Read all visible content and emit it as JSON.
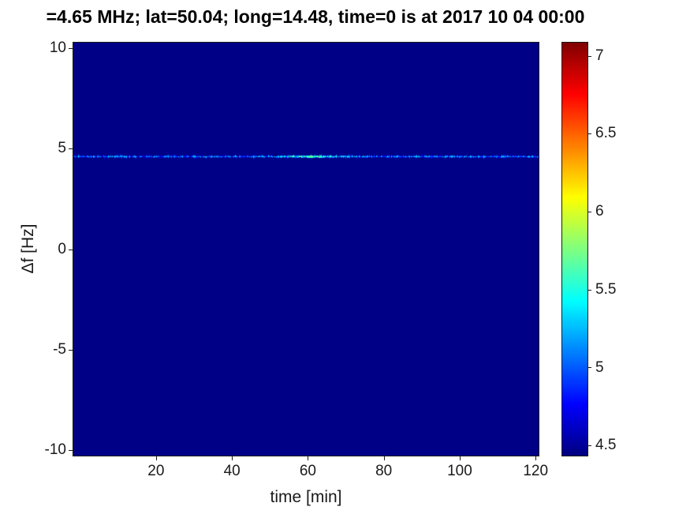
{
  "chart_data": {
    "type": "heatmap",
    "title": "=4.65 MHz;  lat=50.04; long=14.48, time=0 is at 2017 10 04 00:00",
    "xlabel": "time [min]",
    "ylabel": "Δf [Hz]",
    "xlim": [
      -2,
      121
    ],
    "ylim": [
      -10.3,
      10.3
    ],
    "xticks": [
      20,
      40,
      60,
      80,
      100,
      120
    ],
    "yticks": [
      10,
      5,
      0,
      -5,
      -10
    ],
    "grid": false,
    "legend": false,
    "colorbar": {
      "position": "right",
      "colormap": "jet",
      "range": [
        4.43,
        7.09
      ],
      "ticks": [
        7,
        6.5,
        6,
        5.5,
        5,
        4.5
      ]
    },
    "background_value": 4.45,
    "signal_trace": {
      "delta_f_hz": 4.6,
      "base_intensity": 5.05,
      "intensity_jitter": 0.35,
      "peak": {
        "time_min": 61,
        "width_min": 5,
        "intensity": 5.6
      },
      "extent_time_min": [
        -2,
        121
      ],
      "description": "thin speckled horizontal spectral line at Δf ≈ 4.6 Hz spanning all times, brightest (green-cyan) near t ≈ 55–70 min"
    }
  },
  "colors": {
    "figure_background": "#ffffff",
    "axis_color": "#1a1a1a",
    "tick_label_color": "#1a1a1a",
    "title_color": "#000000"
  }
}
